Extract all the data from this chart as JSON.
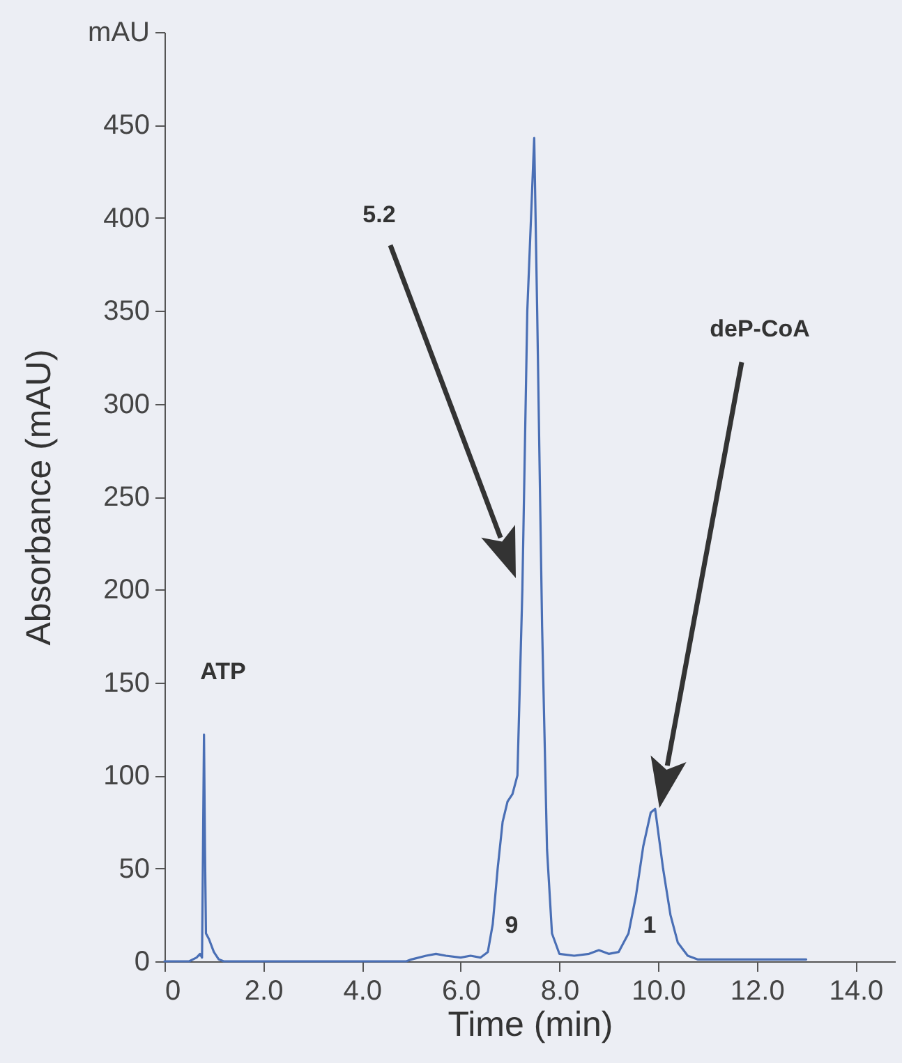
{
  "chart_data": {
    "type": "line",
    "xlabel": "Time (min)",
    "ylabel": "Absorbance (mAU)",
    "x": [
      0,
      0.5,
      0.65,
      0.72,
      0.76,
      0.78,
      0.8,
      0.82,
      0.84,
      0.9,
      1.0,
      1.1,
      1.2,
      4.9,
      5.0,
      5.3,
      5.5,
      5.7,
      6.0,
      6.2,
      6.4,
      6.55,
      6.65,
      6.75,
      6.85,
      6.95,
      7.05,
      7.15,
      7.25,
      7.35,
      7.49,
      7.55,
      7.65,
      7.75,
      7.85,
      8.0,
      8.3,
      8.6,
      8.8,
      9.0,
      9.2,
      9.4,
      9.55,
      9.7,
      9.85,
      9.94,
      10.1,
      10.25,
      10.4,
      10.6,
      10.8,
      11.5,
      12.5,
      13.0
    ],
    "series": [
      {
        "color": "#4a6fb5",
        "values": [
          0,
          0,
          2,
          4,
          2,
          60,
          122,
          60,
          15,
          12,
          5,
          1,
          0,
          0,
          1,
          3,
          4,
          3,
          2,
          3,
          2,
          5,
          20,
          50,
          75,
          86,
          90,
          100,
          200,
          350,
          443,
          350,
          180,
          60,
          15,
          4,
          3,
          4,
          6,
          4,
          5,
          15,
          35,
          62,
          80,
          82,
          50,
          25,
          10,
          3,
          1,
          1,
          1,
          1
        ]
      }
    ],
    "xlim": [
      0,
      14.8
    ],
    "xticks": [
      0,
      {
        "value": 2,
        "label": "2.0"
      },
      {
        "value": 4,
        "label": "4.0"
      },
      {
        "value": 6,
        "label": "6.0"
      },
      {
        "value": 8,
        "label": "8.0"
      },
      {
        "value": 10,
        "label": "10.0"
      },
      {
        "value": 12,
        "label": "12.0"
      },
      {
        "value": 14,
        "label": "14.0"
      }
    ],
    "ylim": [
      0,
      500
    ],
    "yticks": [
      0,
      50,
      100,
      150,
      200,
      250,
      300,
      350,
      400,
      450,
      {
        "value": 500,
        "label": "mAU"
      }
    ],
    "grid": false,
    "line_style": "solid",
    "marker": "none",
    "annotations": [
      "ATP",
      "5.2",
      "deP-CoA",
      "9",
      "1"
    ]
  }
}
